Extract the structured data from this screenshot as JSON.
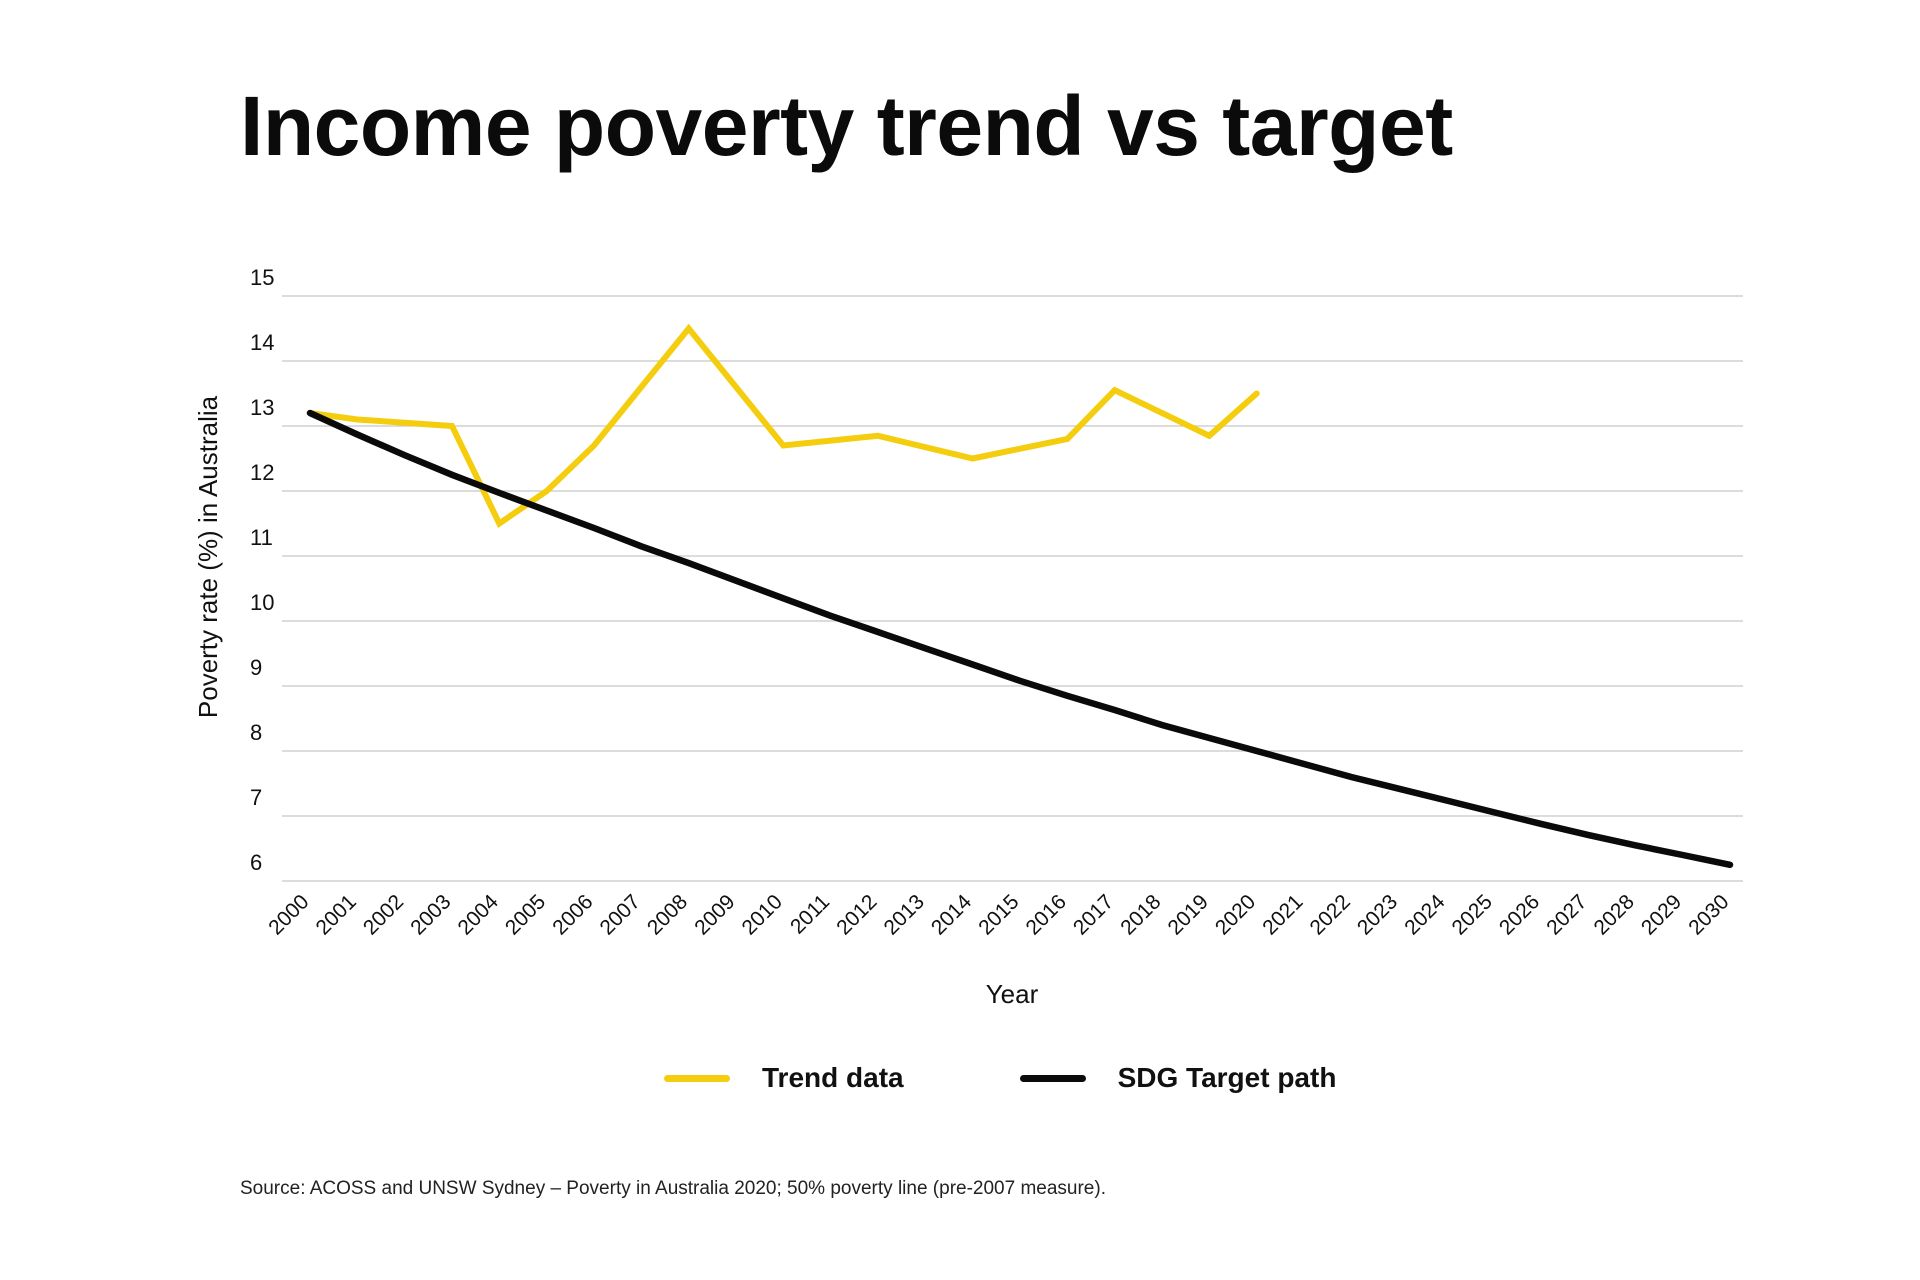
{
  "title": "Income poverty trend vs target",
  "source": "Source: ACOSS and UNSW Sydney – Poverty in Australia 2020; 50% poverty line (pre-2007 measure).",
  "colors": {
    "trend": "#f5cd0f",
    "target": "#0a0a0a",
    "grid": "#c8c8c8"
  },
  "chart_data": {
    "type": "line",
    "title": "Income poverty trend vs target",
    "xlabel": "Year",
    "ylabel": "Poverty rate (%) in Australia",
    "ylim": [
      6,
      15
    ],
    "yticks": [
      6,
      7,
      8,
      9,
      10,
      11,
      12,
      13,
      14,
      15
    ],
    "grid": "horizontal",
    "legend_position": "bottom",
    "x": [
      "2000",
      "2001",
      "2002",
      "2003",
      "2004",
      "2005",
      "2006",
      "2007",
      "2008",
      "2009",
      "2010",
      "2011",
      "2012",
      "2013",
      "2014",
      "2015",
      "2016",
      "2017",
      "2018",
      "2019",
      "2020",
      "2021",
      "2022",
      "2023",
      "2024",
      "2025",
      "2026",
      "2027",
      "2028",
      "2029",
      "2030"
    ],
    "series": [
      {
        "name": "Trend data",
        "color": "#f5cd0f",
        "values": [
          13.2,
          13.1,
          13.05,
          13.0,
          11.5,
          12.0,
          12.7,
          13.6,
          14.5,
          null,
          12.7,
          null,
          12.85,
          null,
          12.5,
          null,
          12.8,
          13.55,
          null,
          12.85,
          13.5,
          null,
          null,
          null,
          null,
          null,
          null,
          null,
          null,
          null,
          null
        ]
      },
      {
        "name": "SDG Target path",
        "color": "#0a0a0a",
        "values": [
          13.2,
          12.87,
          12.55,
          12.25,
          11.97,
          11.7,
          11.43,
          11.15,
          10.89,
          10.62,
          10.35,
          10.08,
          9.83,
          9.58,
          9.33,
          9.08,
          8.85,
          8.63,
          8.4,
          8.2,
          8.0,
          7.8,
          7.6,
          7.42,
          7.24,
          7.06,
          6.88,
          6.71,
          6.55,
          6.4,
          6.25
        ]
      }
    ]
  }
}
